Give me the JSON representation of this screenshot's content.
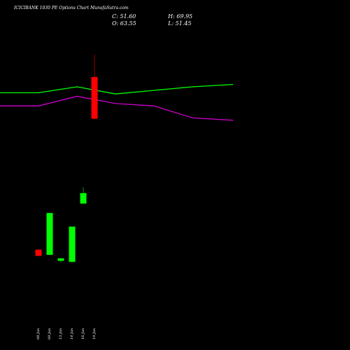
{
  "header": {
    "title": "ICICIBANK 1030  PE Options  Chart MunafaSutra.com",
    "close_label": "C: 51.60",
    "high_label": "H: 69.95",
    "open_label": "O: 63.55",
    "low_label": "L: 51.45"
  },
  "colors": {
    "background": "#000000",
    "green_line": "#00ff00",
    "purple_line": "#cc00cc",
    "up_candle": "#00ff00",
    "down_candle": "#ff0000",
    "text": "#ffffff"
  },
  "chart_data": {
    "type": "candlestick",
    "title": "ICICIBANK 1030  PE Options  Chart MunafaSutra.com",
    "categories": [
      "08 Jan",
      "09 Jan",
      "13 Jan",
      "14 Jan",
      "16 Jan",
      "19 Jan"
    ],
    "ylim": [
      5,
      78
    ],
    "candles": [
      {
        "date": "08 Jan",
        "open": 14.1,
        "high": 14.1,
        "low": 12.3,
        "close": 12.3
      },
      {
        "date": "09 Jan",
        "open": 12.6,
        "high": 24.6,
        "low": 12.6,
        "close": 24.6
      },
      {
        "date": "13 Jan",
        "open": 10.9,
        "high": 11.6,
        "low": 10.4,
        "close": 11.6
      },
      {
        "date": "14 Jan",
        "open": 10.6,
        "high": 20.7,
        "low": 10.4,
        "close": 20.7
      },
      {
        "date": "16 Jan",
        "open": 27.3,
        "high": 32.0,
        "low": 27.3,
        "close": 30.3
      },
      {
        "date": "19 Jan",
        "open": 63.55,
        "high": 69.95,
        "low": 51.45,
        "close": 51.6
      }
    ],
    "overlay_lines": [
      {
        "color": "#00ff00",
        "points": [
          [
            0,
            243
          ],
          [
            55,
            243
          ],
          [
            110,
            248
          ],
          [
            165,
            242
          ],
          [
            220,
            245
          ],
          [
            275,
            248
          ],
          [
            333,
            250
          ]
        ]
      },
      {
        "color": "#cc00cc",
        "points": [
          [
            0,
            232
          ],
          [
            55,
            232
          ],
          [
            110,
            240
          ],
          [
            165,
            234
          ],
          [
            220,
            232
          ],
          [
            275,
            222
          ],
          [
            333,
            220
          ]
        ]
      }
    ],
    "overlay_ylim": [
      180,
      265
    ]
  }
}
